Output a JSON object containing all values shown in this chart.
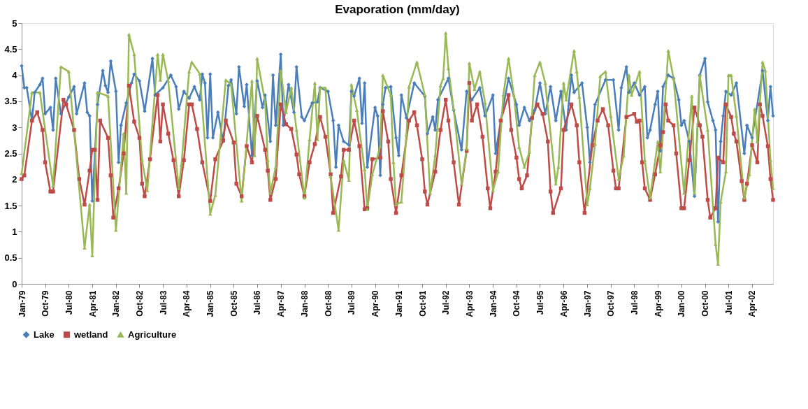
{
  "chart_data": {
    "type": "line",
    "title": "Evaporation (mm/day)",
    "xlim": [
      "1979-01",
      "2002-12"
    ],
    "xticks": [
      {
        "value": "1979-01",
        "label": "Jan-79"
      },
      {
        "value": "1979-10",
        "label": "Oct-79"
      },
      {
        "value": "1980-07",
        "label": "Jul-80"
      },
      {
        "value": "1981-04",
        "label": "Apr-81"
      },
      {
        "value": "1982-01",
        "label": "Jan-82"
      },
      {
        "value": "1982-10",
        "label": "Oct-82"
      },
      {
        "value": "1983-07",
        "label": "Jul-83"
      },
      {
        "value": "1984-04",
        "label": "Apr-84"
      },
      {
        "value": "1985-01",
        "label": "Jan-85"
      },
      {
        "value": "1985-10",
        "label": "Oct-85"
      },
      {
        "value": "1986-07",
        "label": "Jul-86"
      },
      {
        "value": "1987-04",
        "label": "Apr-87"
      },
      {
        "value": "1988-01",
        "label": "Jan-88"
      },
      {
        "value": "1988-10",
        "label": "Oct-88"
      },
      {
        "value": "1989-07",
        "label": "Jul-89"
      },
      {
        "value": "1990-04",
        "label": "Apr-90"
      },
      {
        "value": "1991-01",
        "label": "Jan-91"
      },
      {
        "value": "1991-10",
        "label": "Oct-91"
      },
      {
        "value": "1992-07",
        "label": "Jul-92"
      },
      {
        "value": "1993-04",
        "label": "Apr-93"
      },
      {
        "value": "1994-01",
        "label": "Jan-94"
      },
      {
        "value": "1994-10",
        "label": "Oct-94"
      },
      {
        "value": "1995-07",
        "label": "Jul-95"
      },
      {
        "value": "1996-04",
        "label": "Apr-96"
      },
      {
        "value": "1997-01",
        "label": "Jan-97"
      },
      {
        "value": "1997-10",
        "label": "Oct-97"
      },
      {
        "value": "1998-07",
        "label": "Jul-98"
      },
      {
        "value": "1999-04",
        "label": "Apr-99"
      },
      {
        "value": "2000-01",
        "label": "Jan-00"
      },
      {
        "value": "2000-10",
        "label": "Oct-00"
      },
      {
        "value": "2001-07",
        "label": "Jul-01"
      },
      {
        "value": "2002-04",
        "label": "Apr-02"
      }
    ],
    "ylim": [
      0,
      5
    ],
    "yticks": [
      0,
      0.5,
      1,
      1.5,
      2,
      2.5,
      3,
      3.5,
      4,
      4.5,
      5
    ],
    "grid": false,
    "legend": "bottom",
    "series": [
      {
        "name": "Lake",
        "color": "#4a7ebb",
        "marker": "diamond",
        "x": [
          "1979-01",
          "1979-02",
          "1979-03",
          "1979-05",
          "1979-06",
          "1979-08",
          "1979-09",
          "1979-10",
          "1979-12",
          "1980-01",
          "1980-02",
          "1980-04",
          "1980-07",
          "1980-09",
          "1980-10",
          "1981-01",
          "1981-02",
          "1981-03",
          "1981-04",
          "1981-06",
          "1981-08",
          "1981-09",
          "1981-10",
          "1981-11",
          "1982-01",
          "1982-02",
          "1982-03",
          "1982-05",
          "1982-07",
          "1982-08",
          "1982-10",
          "1982-12",
          "1983-03",
          "1983-04",
          "1983-07",
          "1983-10",
          "1983-12",
          "1984-01",
          "1984-03",
          "1984-05",
          "1984-07",
          "1984-09",
          "1984-10",
          "1984-11",
          "1984-12",
          "1985-01",
          "1985-02",
          "1985-04",
          "1985-06",
          "1985-08",
          "1985-09",
          "1985-11",
          "1985-12",
          "1986-02",
          "1986-03",
          "1986-05",
          "1986-07",
          "1986-09",
          "1986-10",
          "1986-12",
          "1987-01",
          "1987-02",
          "1987-04",
          "1987-05",
          "1987-07",
          "1987-09",
          "1987-10",
          "1987-12",
          "1988-01",
          "1988-04",
          "1988-06",
          "1988-07",
          "1988-10",
          "1988-12",
          "1989-01",
          "1989-02",
          "1989-04",
          "1989-06",
          "1989-07",
          "1989-08",
          "1989-10",
          "1989-11",
          "1989-12",
          "1990-01",
          "1990-04",
          "1990-05",
          "1990-06",
          "1990-07",
          "1990-08",
          "1990-10",
          "1990-12",
          "1991-01",
          "1991-02",
          "1991-04",
          "1991-07",
          "1991-11",
          "1991-12",
          "1992-02",
          "1992-03",
          "1992-04",
          "1992-08",
          "1992-10",
          "1993-01",
          "1993-03",
          "1993-05",
          "1993-08",
          "1993-10",
          "1994-01",
          "1994-02",
          "1994-04",
          "1994-07",
          "1994-10",
          "1994-11",
          "1995-01",
          "1995-03",
          "1995-05",
          "1995-07",
          "1995-09",
          "1995-11",
          "1996-01",
          "1996-03",
          "1996-05",
          "1996-07",
          "1996-08",
          "1996-11",
          "1997-01",
          "1997-02",
          "1997-04",
          "1997-08",
          "1997-11",
          "1998-01",
          "1998-02",
          "1998-04",
          "1998-05",
          "1998-07",
          "1998-09",
          "1998-11",
          "1998-12",
          "1999-01",
          "1999-03",
          "1999-04",
          "1999-05",
          "1999-06",
          "1999-08",
          "1999-10",
          "1999-12",
          "2000-01",
          "2000-02",
          "2000-04",
          "2000-06",
          "2000-08",
          "2000-10",
          "2000-11",
          "2001-01",
          "2001-02",
          "2001-03",
          "2001-04",
          "2001-05",
          "2001-06",
          "2001-08",
          "2001-10",
          "2002-01",
          "2002-02",
          "2002-04",
          "2002-08",
          "2002-10",
          "2002-11",
          "2002-12"
        ],
        "values": [
          4.18,
          3.76,
          3.76,
          3.13,
          3.67,
          3.82,
          3.94,
          3.26,
          3.38,
          2.95,
          3.94,
          3.26,
          3.58,
          3.78,
          3.26,
          3.85,
          3.29,
          3.22,
          1.59,
          3.44,
          4.09,
          3.8,
          3.67,
          4.27,
          3.69,
          2.33,
          3.04,
          3.47,
          3.85,
          4.02,
          3.89,
          3.31,
          4.32,
          3.62,
          3.76,
          4.0,
          3.78,
          3.35,
          3.69,
          3.56,
          3.78,
          3.53,
          4.02,
          3.85,
          2.8,
          4.02,
          2.8,
          3.29,
          2.73,
          3.8,
          3.91,
          3.26,
          4.16,
          3.4,
          3.82,
          2.46,
          3.89,
          3.38,
          3.62,
          2.73,
          4.0,
          3.04,
          4.4,
          3.04,
          3.82,
          3.29,
          4.16,
          3.2,
          3.13,
          3.47,
          3.49,
          3.76,
          3.69,
          3.13,
          2.24,
          3.04,
          2.73,
          2.66,
          3.69,
          3.6,
          3.94,
          3.08,
          3.85,
          2.24,
          3.38,
          3.22,
          2.08,
          3.44,
          3.76,
          3.78,
          2.8,
          2.46,
          3.62,
          3.18,
          3.85,
          3.6,
          2.88,
          3.2,
          2.95,
          3.53,
          3.94,
          3.33,
          2.57,
          3.69,
          3.53,
          3.76,
          3.22,
          3.62,
          2.5,
          3.13,
          3.94,
          3.44,
          3.04,
          3.38,
          3.13,
          3.33,
          3.85,
          3.26,
          3.78,
          3.13,
          3.69,
          2.95,
          4.0,
          3.67,
          3.85,
          3.0,
          2.33,
          3.44,
          3.91,
          3.91,
          2.95,
          3.76,
          4.16,
          3.67,
          3.85,
          3.62,
          3.78,
          2.8,
          2.95,
          3.44,
          3.69,
          2.55,
          3.78,
          4.0,
          3.94,
          3.53,
          3.04,
          3.13,
          2.73,
          1.68,
          4.0,
          4.32,
          3.49,
          3.13,
          2.95,
          1.19,
          2.73,
          3.22,
          3.69,
          3.62,
          3.85,
          2.5,
          3.04,
          2.8,
          4.09,
          3.13,
          3.78,
          3.22
        ]
      },
      {
        "name": "wetland",
        "color": "#be4b48",
        "marker": "square",
        "x": [
          "1979-01",
          "1979-02",
          "1979-05",
          "1979-07",
          "1979-09",
          "1979-10",
          "1979-12",
          "1980-01",
          "1980-05",
          "1980-06",
          "1980-09",
          "1980-11",
          "1981-01",
          "1981-03",
          "1981-04",
          "1981-05",
          "1981-06",
          "1981-07",
          "1981-10",
          "1981-11",
          "1981-12",
          "1982-02",
          "1982-04",
          "1982-06",
          "1982-08",
          "1982-10",
          "1982-11",
          "1982-12",
          "1983-02",
          "1983-05",
          "1983-06",
          "1983-07",
          "1983-09",
          "1983-11",
          "1984-01",
          "1984-03",
          "1984-05",
          "1984-06",
          "1984-08",
          "1984-10",
          "1985-01",
          "1985-03",
          "1985-06",
          "1985-07",
          "1985-10",
          "1985-11",
          "1986-01",
          "1986-03",
          "1986-05",
          "1986-07",
          "1986-10",
          "1986-11",
          "1986-12",
          "1987-02",
          "1987-04",
          "1987-06",
          "1987-08",
          "1987-10",
          "1987-11",
          "1988-01",
          "1988-03",
          "1988-05",
          "1988-07",
          "1988-09",
          "1988-11",
          "1988-12",
          "1989-03",
          "1989-04",
          "1989-06",
          "1989-08",
          "1989-10",
          "1989-12",
          "1990-01",
          "1990-03",
          "1990-06",
          "1990-07",
          "1990-09",
          "1990-10",
          "1990-12",
          "1991-02",
          "1991-05",
          "1991-07",
          "1991-08",
          "1991-10",
          "1991-11",
          "1991-12",
          "1992-03",
          "1992-05",
          "1992-07",
          "1992-08",
          "1992-10",
          "1992-12",
          "1993-03",
          "1993-04",
          "1993-05",
          "1993-07",
          "1993-09",
          "1993-11",
          "1993-12",
          "1994-02",
          "1994-04",
          "1994-07",
          "1994-08",
          "1994-10",
          "1994-11",
          "1994-12",
          "1995-02",
          "1995-04",
          "1995-06",
          "1995-08",
          "1995-10",
          "1995-11",
          "1995-12",
          "1996-03",
          "1996-04",
          "1996-07",
          "1996-09",
          "1996-10",
          "1996-12",
          "1997-03",
          "1997-05",
          "1997-07",
          "1997-09",
          "1997-11",
          "1997-12",
          "1998-01",
          "1998-04",
          "1998-07",
          "1998-08",
          "1998-09",
          "1998-10",
          "1998-11",
          "1999-01",
          "1999-03",
          "1999-05",
          "1999-06",
          "1999-07",
          "1999-08",
          "1999-10",
          "1999-11",
          "2000-01",
          "2000-02",
          "2000-04",
          "2000-06",
          "2000-08",
          "2000-09",
          "2000-11",
          "2000-12",
          "2001-02",
          "2001-03",
          "2001-05",
          "2001-06",
          "2001-08",
          "2001-09",
          "2001-10",
          "2001-12",
          "2002-01",
          "2002-02",
          "2002-04",
          "2002-06",
          "2002-07",
          "2002-08",
          "2002-10",
          "2002-11",
          "2002-12"
        ],
        "values": [
          2.01,
          2.08,
          3.13,
          3.29,
          2.95,
          2.33,
          1.77,
          1.77,
          3.53,
          3.44,
          2.95,
          2.01,
          1.52,
          2.17,
          2.57,
          2.57,
          1.61,
          3.13,
          2.8,
          2.08,
          1.27,
          1.83,
          2.5,
          3.8,
          3.11,
          2.8,
          1.92,
          1.68,
          2.39,
          3.62,
          2.73,
          3.44,
          2.88,
          2.37,
          1.68,
          2.37,
          3.44,
          3.44,
          2.97,
          2.33,
          1.59,
          2.39,
          2.75,
          3.13,
          2.71,
          1.92,
          1.68,
          2.64,
          2.33,
          3.22,
          2.57,
          2.17,
          1.61,
          2.01,
          3.44,
          3.06,
          2.97,
          2.48,
          2.1,
          1.68,
          2.33,
          2.68,
          3.2,
          2.82,
          2.1,
          1.36,
          2.06,
          2.57,
          2.57,
          3.13,
          2.64,
          1.43,
          1.45,
          2.39,
          2.42,
          3.31,
          2.73,
          2.01,
          1.36,
          2.08,
          3.13,
          3.29,
          3.04,
          2.39,
          1.77,
          1.52,
          2.15,
          2.95,
          3.53,
          3.13,
          2.33,
          1.52,
          2.55,
          3.85,
          3.13,
          3.44,
          2.82,
          1.83,
          1.45,
          2.15,
          3.13,
          3.62,
          2.95,
          2.42,
          2.01,
          1.83,
          2.08,
          3.18,
          3.44,
          3.26,
          2.73,
          1.77,
          1.36,
          1.83,
          2.95,
          3.44,
          3.04,
          2.33,
          1.36,
          2.66,
          3.13,
          3.35,
          3.04,
          2.17,
          1.83,
          1.83,
          3.2,
          3.26,
          3.11,
          3.13,
          2.33,
          1.83,
          1.61,
          2.1,
          2.66,
          2.91,
          3.44,
          3.13,
          3.04,
          2.5,
          1.45,
          1.45,
          2.37,
          3.38,
          3.04,
          2.82,
          1.61,
          1.27,
          1.45,
          2.42,
          2.33,
          3.44,
          3.2,
          2.88,
          2.73,
          1.97,
          1.61,
          1.92,
          2.66,
          2.33,
          3.44,
          3.22,
          2.64,
          2.01,
          1.61
        ]
      },
      {
        "name": "Agriculture",
        "color": "#98b954",
        "marker": "triangle",
        "x": [
          "1979-01",
          "1979-05",
          "1979-08",
          "1980-01",
          "1980-04",
          "1980-07",
          "1981-01",
          "1981-03",
          "1981-04",
          "1981-06",
          "1981-10",
          "1982-01",
          "1982-04",
          "1982-05",
          "1982-06",
          "1982-08",
          "1982-11",
          "1983-01",
          "1983-05",
          "1983-06",
          "1983-07",
          "1983-09",
          "1984-01",
          "1984-02",
          "1984-05",
          "1984-06",
          "1984-09",
          "1985-01",
          "1985-03",
          "1985-07",
          "1985-09",
          "1986-01",
          "1986-05",
          "1986-06",
          "1986-07",
          "1986-10",
          "1986-11",
          "1986-12",
          "1987-02",
          "1987-04",
          "1987-06",
          "1987-08",
          "1987-10",
          "1988-01",
          "1988-03",
          "1988-05",
          "1988-06",
          "1988-07",
          "1988-09",
          "1988-11",
          "1989-02",
          "1989-04",
          "1989-06",
          "1989-07",
          "1989-09",
          "1989-12",
          "1990-01",
          "1990-03",
          "1990-06",
          "1990-07",
          "1990-10",
          "1990-11",
          "1990-12",
          "1991-02",
          "1991-04",
          "1991-05",
          "1991-08",
          "1991-11",
          "1992-01",
          "1992-03",
          "1992-05",
          "1992-06",
          "1992-07",
          "1992-08",
          "1992-10",
          "1993-01",
          "1993-03",
          "1993-04",
          "1993-06",
          "1993-08",
          "1993-10",
          "1994-01",
          "1994-03",
          "1994-05",
          "1994-07",
          "1994-09",
          "1994-11",
          "1995-01",
          "1995-03",
          "1995-05",
          "1995-07",
          "1995-09",
          "1996-01",
          "1996-02",
          "1996-04",
          "1996-05",
          "1996-08",
          "1996-09",
          "1996-10",
          "1997-01",
          "1997-02",
          "1997-04",
          "1997-06",
          "1997-08",
          "1997-10",
          "1998-01",
          "1998-03",
          "1998-05",
          "1998-06",
          "1998-09",
          "1998-11",
          "1999-01",
          "1999-04",
          "1999-05",
          "1999-08",
          "1999-10",
          "2000-02",
          "2000-05",
          "2000-06",
          "2000-08",
          "2000-11",
          "2001-02",
          "2001-03",
          "2001-04",
          "2001-06",
          "2001-07",
          "2001-08",
          "2001-10",
          "2002-01",
          "2002-03",
          "2002-05",
          "2002-06",
          "2002-08",
          "2002-09",
          "2002-11",
          "2002-12"
        ],
        "values": [
          2.12,
          3.67,
          3.67,
          1.88,
          4.16,
          4.07,
          0.69,
          1.52,
          0.54,
          3.67,
          3.6,
          1.03,
          2.88,
          1.74,
          4.78,
          4.4,
          2.37,
          1.79,
          4.4,
          3.91,
          4.4,
          3.89,
          1.83,
          2.28,
          4.07,
          4.25,
          4.03,
          1.34,
          1.7,
          3.91,
          3.82,
          1.59,
          3.89,
          2.46,
          4.32,
          3.49,
          2.37,
          1.74,
          2.24,
          4.09,
          3.29,
          3.76,
          2.95,
          1.65,
          2.77,
          3.85,
          2.77,
          3.76,
          3.76,
          2.06,
          1.03,
          2.37,
          1.99,
          3.82,
          3.33,
          2.19,
          1.43,
          2.1,
          2.64,
          4.0,
          3.62,
          2.33,
          1.52,
          1.57,
          2.86,
          3.78,
          4.25,
          3.62,
          1.74,
          2.46,
          3.8,
          3.94,
          4.81,
          4.13,
          3.35,
          1.92,
          2.59,
          4.23,
          3.73,
          4.07,
          3.47,
          1.79,
          2.15,
          3.62,
          4.32,
          3.62,
          2.62,
          2.24,
          2.53,
          4.0,
          4.25,
          3.85,
          1.92,
          2.24,
          3.85,
          3.53,
          4.47,
          4.07,
          3.58,
          1.52,
          1.83,
          2.68,
          3.98,
          4.07,
          3.22,
          2.01,
          2.46,
          4.0,
          3.62,
          4.07,
          2.37,
          1.65,
          2.73,
          2.15,
          4.47,
          3.94,
          1.74,
          3.6,
          1.74,
          4.0,
          2.95,
          0.76,
          0.38,
          1.57,
          2.15,
          4.0,
          4.0,
          3.22,
          1.65,
          2.1,
          3.35,
          2.73,
          4.25,
          4.09,
          2.37,
          1.83
        ]
      }
    ]
  }
}
